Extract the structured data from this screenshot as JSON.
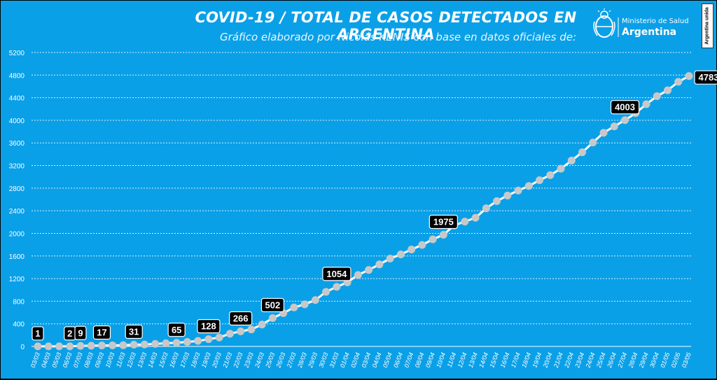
{
  "header": {
    "title": "COVID-19  /  TOTAL DE CASOS DETECTADOS EN ARGENTINA",
    "subtitle": "Gráfico elaborado por Nicolás KENIS con base en datos oficiales de:"
  },
  "logo": {
    "ministry_name": "Ministerio de Salud",
    "country": "Argentina",
    "badge_text": "Argentina unida",
    "icon": "argentina-coat-of-arms-icon"
  },
  "colors": {
    "background": "#0aa0e8",
    "line": "#ffffff",
    "marker": "#c8c8c8",
    "label_bg": "#000000",
    "label_text": "#ffffff",
    "grid": "#ffffff"
  },
  "chart_data": {
    "type": "line",
    "title": "COVID-19  /  TOTAL DE CASOS DETECTADOS EN ARGENTINA",
    "xlabel": "",
    "ylabel": "",
    "ylim": [
      0,
      5200
    ],
    "yticks": [
      0,
      400,
      800,
      1200,
      1600,
      2000,
      2400,
      2800,
      3200,
      3600,
      4000,
      4400,
      4800,
      5200
    ],
    "grid": true,
    "legend": "none",
    "x": [
      "03/03",
      "04/03",
      "05/03",
      "06/03",
      "07/03",
      "08/03",
      "09/03",
      "10/03",
      "11/03",
      "12/03",
      "13/03",
      "14/03",
      "15/03",
      "16/03",
      "17/03",
      "18/03",
      "19/03",
      "20/03",
      "21/03",
      "22/03",
      "23/03",
      "24/03",
      "25/03",
      "26/03",
      "27/03",
      "28/03",
      "29/03",
      "30/03",
      "31/03",
      "01/04",
      "02/04",
      "03/04",
      "04/04",
      "05/04",
      "06/04",
      "07/04",
      "08/04",
      "09/04",
      "10/04",
      "11/04",
      "12/04",
      "13/04",
      "14/04",
      "15/04",
      "16/04",
      "17/04",
      "18/04",
      "19/04",
      "20/04",
      "21/04",
      "22/04",
      "23/04",
      "24/04",
      "25/04",
      "26/04",
      "27/04",
      "28/04",
      "29/04",
      "30/04",
      "01/05",
      "02/05",
      "03/05"
    ],
    "values": [
      1,
      1,
      1,
      2,
      9,
      12,
      17,
      19,
      21,
      31,
      34,
      45,
      56,
      65,
      79,
      97,
      128,
      158,
      225,
      266,
      301,
      387,
      502,
      589,
      690,
      745,
      820,
      966,
      1054,
      1133,
      1265,
      1353,
      1451,
      1554,
      1628,
      1715,
      1795,
      1894,
      1975,
      2142,
      2208,
      2277,
      2443,
      2571,
      2669,
      2758,
      2839,
      2941,
      3031,
      3144,
      3288,
      3435,
      3607,
      3780,
      3892,
      4003,
      4127,
      4285,
      4428,
      4532,
      4681,
      4783
    ],
    "data_labels": [
      {
        "date": "03/03",
        "value": "1"
      },
      {
        "date": "06/03",
        "value": "2"
      },
      {
        "date": "07/03",
        "value": "9"
      },
      {
        "date": "09/03",
        "value": "17"
      },
      {
        "date": "12/03",
        "value": "31"
      },
      {
        "date": "16/03",
        "value": "65"
      },
      {
        "date": "19/03",
        "value": "128"
      },
      {
        "date": "22/03",
        "value": "266"
      },
      {
        "date": "25/03",
        "value": "502"
      },
      {
        "date": "31/03",
        "value": "1054"
      },
      {
        "date": "10/04",
        "value": "1975"
      },
      {
        "date": "27/04",
        "value": "4003"
      },
      {
        "date": "03/05",
        "value": "4783"
      }
    ]
  }
}
